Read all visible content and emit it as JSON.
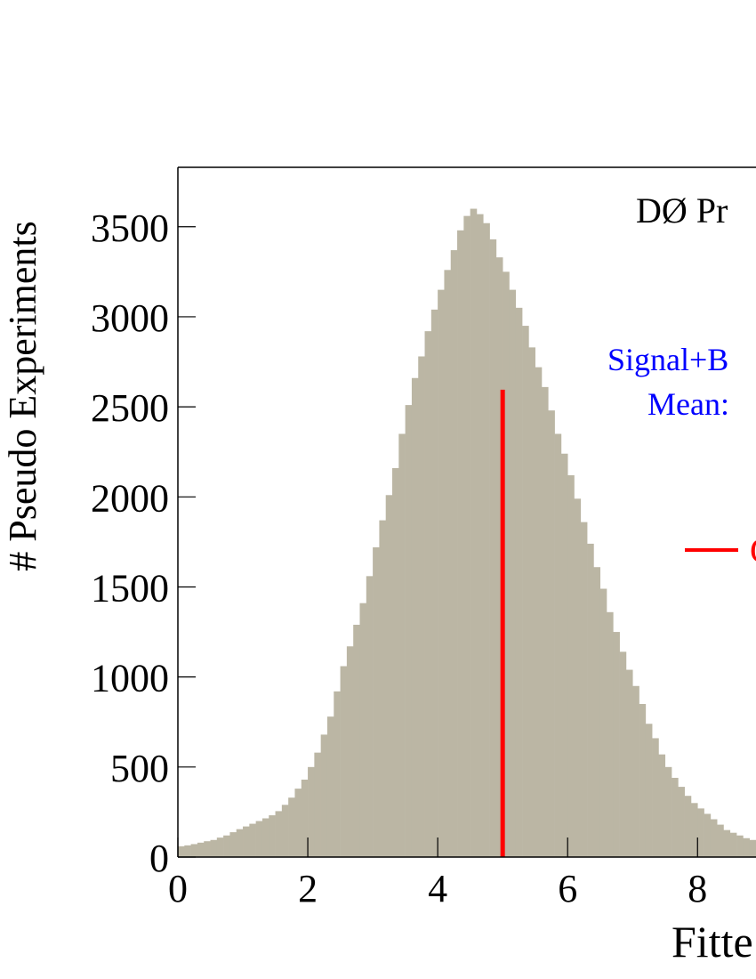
{
  "chart_data": {
    "type": "histogram",
    "xlabel": "Fitte",
    "ylabel": "# Pseudo Experiments",
    "bins": [
      0,
      0.1,
      0.2,
      0.3,
      0.4,
      0.5,
      0.6,
      0.7,
      0.8,
      0.9,
      1,
      1.1,
      1.2,
      1.3,
      1.4,
      1.5,
      1.6,
      1.7,
      1.8,
      1.9,
      2,
      2.1,
      2.2,
      2.3,
      2.4,
      2.5,
      2.6,
      2.7,
      2.8,
      2.9,
      3,
      3.1,
      3.2,
      3.3,
      3.4,
      3.5,
      3.6,
      3.7,
      3.8,
      3.9,
      4,
      4.1,
      4.2,
      4.3,
      4.4,
      4.5,
      4.6,
      4.7,
      4.8,
      4.9,
      5,
      5.1,
      5.2,
      5.3,
      5.4,
      5.5,
      5.6,
      5.7,
      5.8,
      5.9,
      6,
      6.1,
      6.2,
      6.3,
      6.4,
      6.5,
      6.6,
      6.7,
      6.8,
      6.9,
      7,
      7.1,
      7.2,
      7.3,
      7.4,
      7.5,
      7.6,
      7.7,
      7.8,
      7.9,
      8,
      8.1,
      8.2,
      8.3,
      8.4,
      8.5,
      8.6,
      8.7,
      8.8,
      8.9
    ],
    "values": [
      60,
      65,
      72,
      80,
      88,
      95,
      108,
      120,
      138,
      155,
      170,
      185,
      200,
      215,
      232,
      255,
      290,
      330,
      380,
      430,
      500,
      580,
      680,
      780,
      920,
      1060,
      1170,
      1290,
      1410,
      1560,
      1720,
      1870,
      2010,
      2160,
      2350,
      2510,
      2660,
      2780,
      2920,
      3040,
      3150,
      3260,
      3370,
      3480,
      3560,
      3600,
      3570,
      3520,
      3430,
      3330,
      3250,
      3150,
      3050,
      2950,
      2830,
      2720,
      2610,
      2480,
      2350,
      2240,
      2120,
      1990,
      1860,
      1740,
      1610,
      1490,
      1360,
      1250,
      1140,
      1040,
      950,
      850,
      740,
      660,
      570,
      500,
      440,
      390,
      340,
      300,
      270,
      240,
      210,
      180,
      150,
      135,
      120,
      105,
      95
    ],
    "color": "#bbb6a4",
    "xlim": [
      0,
      8.9
    ],
    "ylim": [
      0,
      3830
    ],
    "xticks": [
      0,
      2,
      4,
      6,
      8
    ],
    "yticks": [
      0,
      500,
      1000,
      1500,
      2000,
      2500,
      3000,
      3500
    ],
    "vertical_line": {
      "x": 5,
      "top": 2595,
      "color": "#ff0000"
    },
    "annotations": [
      {
        "text": "DØ Pr",
        "color": "#000000"
      },
      {
        "text": "Signal+B",
        "color": "#0000ff"
      },
      {
        "text": "Mean:",
        "color": "#0000ff"
      },
      {
        "text": "G",
        "color": "#ff0000"
      }
    ]
  }
}
